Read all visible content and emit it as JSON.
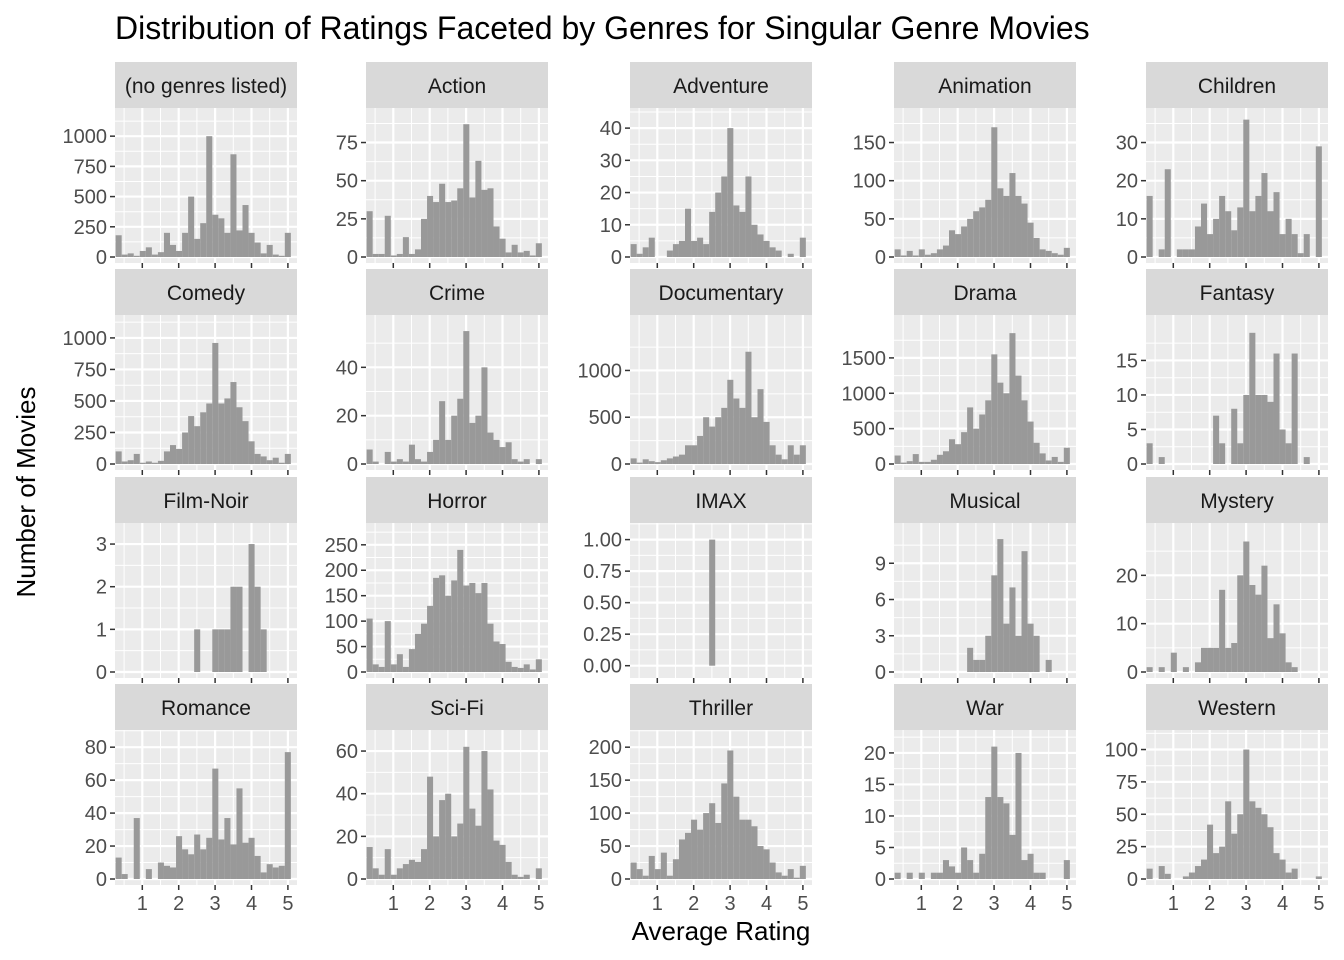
{
  "chart_data": {
    "type": "bar",
    "title": "Distribution of Ratings Faceted by Genres for Singular Genre Movies",
    "xlabel": "Average Rating",
    "ylabel": "Number of Movies",
    "xlim": [
      0.25,
      5.25
    ],
    "x_ticks": [
      1,
      2,
      3,
      4,
      5
    ],
    "bin_width": 0.166,
    "bin_centers": [
      0.35,
      0.516,
      0.682,
      0.848,
      1.014,
      1.18,
      1.346,
      1.512,
      1.678,
      1.844,
      2.01,
      2.176,
      2.342,
      2.508,
      2.674,
      2.84,
      3.006,
      3.172,
      3.338,
      3.504,
      3.67,
      3.836,
      4.002,
      4.168,
      4.334,
      4.5,
      4.666,
      4.832,
      4.998
    ],
    "grid": true,
    "bar_color": "#999999",
    "panel_background": "#ebebeb",
    "strip_background": "#d9d9d9",
    "facets": [
      {
        "name": "(no genres listed)",
        "ylim": [
          0,
          1200
        ],
        "y_ticks": [
          0,
          250,
          500,
          750,
          1000
        ],
        "values": [
          180,
          20,
          30,
          10,
          50,
          80,
          20,
          40,
          200,
          100,
          50,
          200,
          500,
          150,
          280,
          1000,
          350,
          320,
          200,
          850,
          220,
          430,
          200,
          120,
          30,
          100,
          20,
          10,
          200
        ]
      },
      {
        "name": "Action",
        "ylim": [
          0,
          95
        ],
        "y_ticks": [
          0,
          25,
          50,
          75
        ],
        "values": [
          30,
          2,
          2,
          27,
          1,
          2,
          13,
          2,
          5,
          25,
          40,
          36,
          48,
          36,
          37,
          45,
          87,
          39,
          63,
          44,
          45,
          20,
          12,
          3,
          8,
          3,
          4,
          1,
          9
        ]
      },
      {
        "name": "Adventure",
        "ylim": [
          0,
          45
        ],
        "y_ticks": [
          0,
          10,
          20,
          30,
          40
        ],
        "values": [
          4,
          1,
          3,
          6,
          0,
          0,
          2,
          4,
          5,
          15,
          5,
          6,
          4,
          14,
          20,
          25,
          40,
          16,
          14,
          25,
          10,
          7,
          5,
          3,
          2,
          0,
          1,
          0,
          6
        ]
      },
      {
        "name": "Animation",
        "ylim": [
          0,
          190
        ],
        "y_ticks": [
          0,
          50,
          100,
          150
        ],
        "values": [
          10,
          2,
          8,
          2,
          10,
          3,
          5,
          10,
          15,
          35,
          30,
          40,
          50,
          60,
          65,
          75,
          170,
          90,
          80,
          110,
          80,
          70,
          45,
          25,
          10,
          8,
          5,
          3,
          12
        ]
      },
      {
        "name": "Children",
        "ylim": [
          0,
          38
        ],
        "y_ticks": [
          0,
          10,
          20,
          30
        ],
        "values": [
          16,
          0,
          2,
          23,
          0,
          2,
          2,
          2,
          8,
          14,
          6,
          10,
          16,
          12,
          7,
          13,
          36,
          12,
          16,
          22,
          12,
          17,
          6,
          10,
          6,
          1,
          6,
          0,
          29
        ]
      },
      {
        "name": "Comedy",
        "ylim": [
          0,
          1150
        ],
        "y_ticks": [
          0,
          250,
          500,
          750,
          1000
        ],
        "values": [
          100,
          20,
          30,
          80,
          10,
          20,
          10,
          25,
          100,
          150,
          120,
          250,
          380,
          300,
          410,
          480,
          960,
          480,
          520,
          650,
          450,
          340,
          180,
          80,
          60,
          30,
          50,
          10,
          80
        ]
      },
      {
        "name": "Crime",
        "ylim": [
          0,
          60
        ],
        "y_ticks": [
          0,
          20,
          40
        ],
        "values": [
          6,
          1,
          0,
          5,
          1,
          2,
          1,
          8,
          2,
          1,
          5,
          10,
          26,
          10,
          20,
          27,
          55,
          17,
          20,
          40,
          13,
          10,
          7,
          9,
          2,
          1,
          2,
          0,
          2
        ]
      },
      {
        "name": "Documentary",
        "ylim": [
          0,
          1550
        ],
        "y_ticks": [
          0,
          500,
          1000
        ],
        "values": [
          60,
          15,
          50,
          30,
          20,
          40,
          60,
          80,
          100,
          200,
          200,
          300,
          500,
          400,
          500,
          600,
          900,
          700,
          600,
          1200,
          500,
          800,
          450,
          200,
          100,
          50,
          200,
          100,
          200
        ]
      },
      {
        "name": "Drama",
        "ylim": [
          0,
          2050
        ],
        "y_ticks": [
          0,
          500,
          1000,
          1500
        ],
        "values": [
          120,
          20,
          40,
          140,
          30,
          30,
          60,
          130,
          180,
          350,
          280,
          450,
          800,
          500,
          700,
          900,
          1550,
          1150,
          1000,
          1850,
          1250,
          900,
          600,
          300,
          150,
          50,
          100,
          30,
          230
        ]
      },
      {
        "name": "Fantasy",
        "ylim": [
          0,
          21
        ],
        "y_ticks": [
          0,
          5,
          10,
          15
        ],
        "values": [
          3,
          0,
          1,
          0,
          0,
          0,
          0,
          0,
          0,
          0,
          0,
          7,
          3,
          0,
          8,
          3,
          10,
          19,
          10,
          10,
          9,
          16,
          5,
          3,
          16,
          0,
          1,
          0,
          0
        ]
      },
      {
        "name": "Film-Noir",
        "ylim": [
          0,
          3.4
        ],
        "y_ticks": [
          0,
          1,
          2,
          3
        ],
        "values": [
          0,
          0,
          0,
          0,
          0,
          0,
          0,
          0,
          0,
          0,
          0,
          0,
          0,
          1,
          0,
          0,
          1,
          1,
          1,
          2,
          2,
          0,
          3,
          2,
          1,
          0,
          0,
          0,
          0
        ]
      },
      {
        "name": "Horror",
        "ylim": [
          0,
          285
        ],
        "y_ticks": [
          0,
          50,
          100,
          150,
          200,
          250
        ],
        "values": [
          105,
          15,
          10,
          100,
          15,
          35,
          10,
          45,
          75,
          95,
          130,
          185,
          190,
          150,
          180,
          240,
          170,
          175,
          155,
          175,
          95,
          60,
          55,
          20,
          10,
          8,
          15,
          5,
          25
        ]
      },
      {
        "name": "IMAX",
        "ylim": [
          -0.05,
          1.1
        ],
        "y_ticks": [
          0.0,
          0.25,
          0.5,
          0.75,
          1.0
        ],
        "values": [
          0,
          0,
          0,
          0,
          0,
          0,
          0,
          0,
          0,
          0,
          0,
          0,
          0,
          1,
          0,
          0,
          0,
          0,
          0,
          0,
          0,
          0,
          0,
          0,
          0,
          0,
          0,
          0,
          0
        ]
      },
      {
        "name": "Musical",
        "ylim": [
          0,
          12
        ],
        "y_ticks": [
          0,
          3,
          6,
          9
        ],
        "values": [
          0,
          0,
          0,
          0,
          0,
          0,
          0,
          0,
          0,
          0,
          0,
          0,
          2,
          1,
          1,
          3,
          8,
          11,
          4,
          7,
          3,
          10,
          4,
          3,
          0,
          1,
          0,
          0,
          0
        ]
      },
      {
        "name": "Mystery",
        "ylim": [
          0,
          30
        ],
        "y_ticks": [
          0,
          10,
          20
        ],
        "values": [
          1,
          0,
          1,
          0,
          4,
          0,
          1,
          0,
          2,
          5,
          5,
          5,
          17,
          5,
          6,
          20,
          27,
          18,
          16,
          22,
          7,
          14,
          8,
          2,
          1,
          0,
          0,
          0,
          0
        ]
      },
      {
        "name": "Romance",
        "ylim": [
          0,
          88
        ],
        "y_ticks": [
          0,
          20,
          40,
          60,
          80
        ],
        "values": [
          13,
          3,
          0,
          37,
          0,
          6,
          0,
          10,
          8,
          7,
          26,
          18,
          15,
          27,
          18,
          25,
          67,
          24,
          37,
          21,
          55,
          22,
          25,
          14,
          4,
          9,
          7,
          8,
          77
        ]
      },
      {
        "name": "Sci-Fi",
        "ylim": [
          0,
          68
        ],
        "y_ticks": [
          0,
          20,
          40,
          60
        ],
        "values": [
          15,
          5,
          2,
          14,
          2,
          5,
          7,
          9,
          8,
          14,
          48,
          20,
          37,
          40,
          20,
          26,
          62,
          33,
          25,
          60,
          42,
          18,
          16,
          8,
          2,
          1,
          2,
          0,
          5
        ]
      },
      {
        "name": "Thriller",
        "ylim": [
          0,
          220
        ],
        "y_ticks": [
          0,
          50,
          100,
          150,
          200
        ],
        "values": [
          25,
          15,
          5,
          35,
          15,
          40,
          5,
          30,
          60,
          70,
          90,
          75,
          100,
          115,
          85,
          145,
          195,
          125,
          90,
          90,
          80,
          50,
          45,
          25,
          10,
          5,
          15,
          2,
          20
        ]
      },
      {
        "name": "War",
        "ylim": [
          0,
          23
        ],
        "y_ticks": [
          0,
          5,
          10,
          15,
          20
        ],
        "values": [
          1,
          0,
          1,
          0,
          1,
          0,
          1,
          1,
          3,
          2,
          1,
          5,
          3,
          1,
          4,
          13,
          21,
          13,
          12,
          7,
          20,
          3,
          4,
          1,
          1,
          0,
          0,
          0,
          3
        ]
      },
      {
        "name": "Western",
        "ylim": [
          0,
          112
        ],
        "y_ticks": [
          0,
          25,
          50,
          75,
          100
        ],
        "values": [
          8,
          0,
          10,
          4,
          0,
          0,
          2,
          5,
          10,
          15,
          42,
          20,
          25,
          60,
          35,
          50,
          100,
          60,
          55,
          50,
          40,
          20,
          15,
          5,
          8,
          0,
          0,
          0,
          2
        ]
      }
    ]
  }
}
